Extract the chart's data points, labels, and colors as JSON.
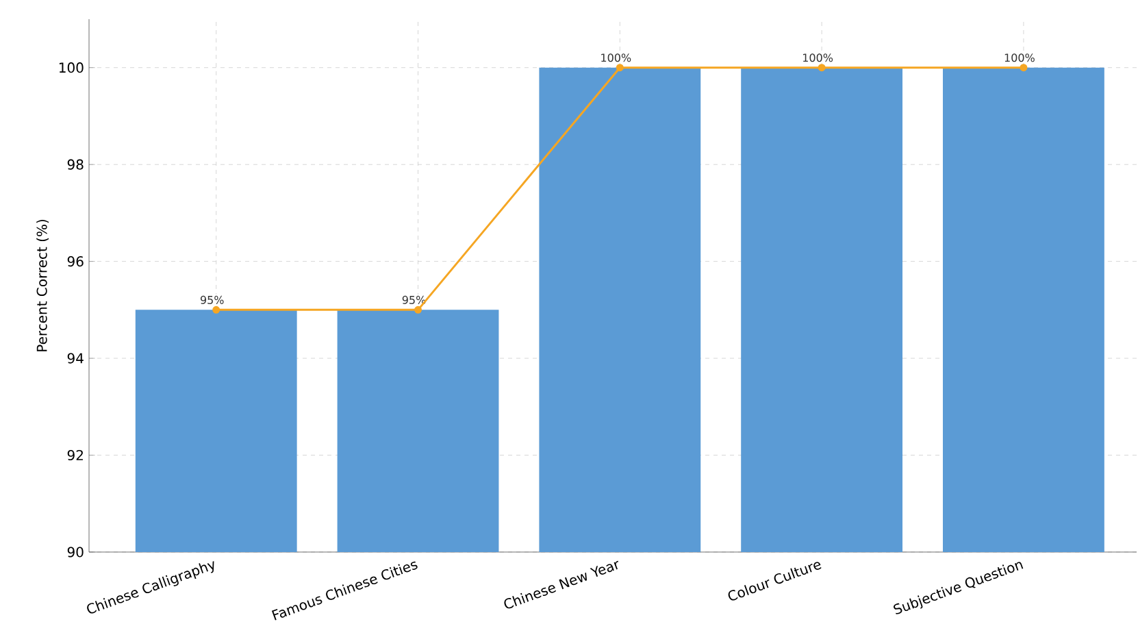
{
  "chart_data": {
    "type": "bar",
    "ylabel": "Percent Correct (%)",
    "categories": [
      "Chinese Calligraphy",
      "Famous Chinese Cities",
      "Chinese New Year",
      "Colour Culture",
      "Subjective Question"
    ],
    "series": [
      {
        "color": "#5b9bd5",
        "values": [
          95,
          95,
          100,
          100,
          100
        ],
        "value_labels": [
          "95%",
          "95%",
          "100%",
          "100%",
          "100%"
        ]
      },
      {
        "type": "line",
        "color": "#f5a623",
        "values": [
          95,
          95,
          100,
          100,
          100
        ],
        "marker": "circle",
        "line_style": "solid"
      }
    ],
    "ylim": [
      90,
      101
    ],
    "yticks": [
      90,
      92,
      94,
      96,
      98,
      100
    ],
    "grid": true
  }
}
